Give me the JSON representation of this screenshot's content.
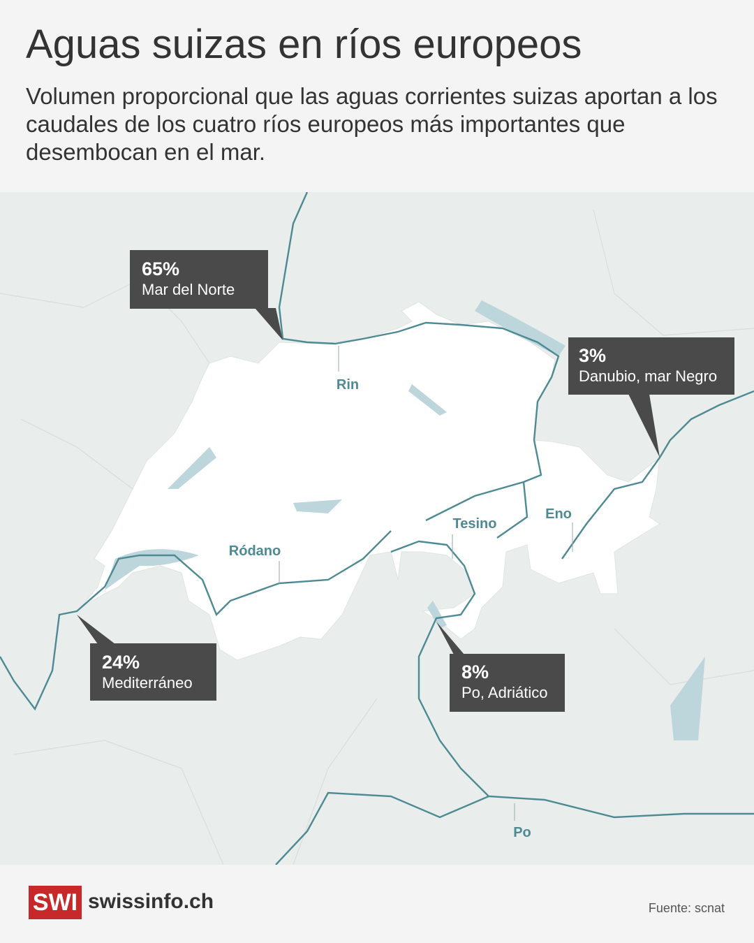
{
  "header": {
    "title": "Aguas suizas en ríos europeos",
    "subtitle": "Volumen proporcional que las aguas corrientes suizas aportan a los caudales de los cuatro ríos europeos más importantes que desembocan en el mar."
  },
  "callouts": [
    {
      "value": "65%",
      "label": "Mar del Norte"
    },
    {
      "value": "3%",
      "label": "Danubio, mar Negro"
    },
    {
      "value": "24%",
      "label": "Mediterráneo"
    },
    {
      "value": "8%",
      "label": "Po, Adriático"
    }
  ],
  "rivers": [
    "Rin",
    "Ródano",
    "Tesino",
    "Eno",
    "Po"
  ],
  "footer": {
    "logo": "SWI",
    "brand": "swissinfo.ch",
    "source": "Fuente: scnat"
  }
}
